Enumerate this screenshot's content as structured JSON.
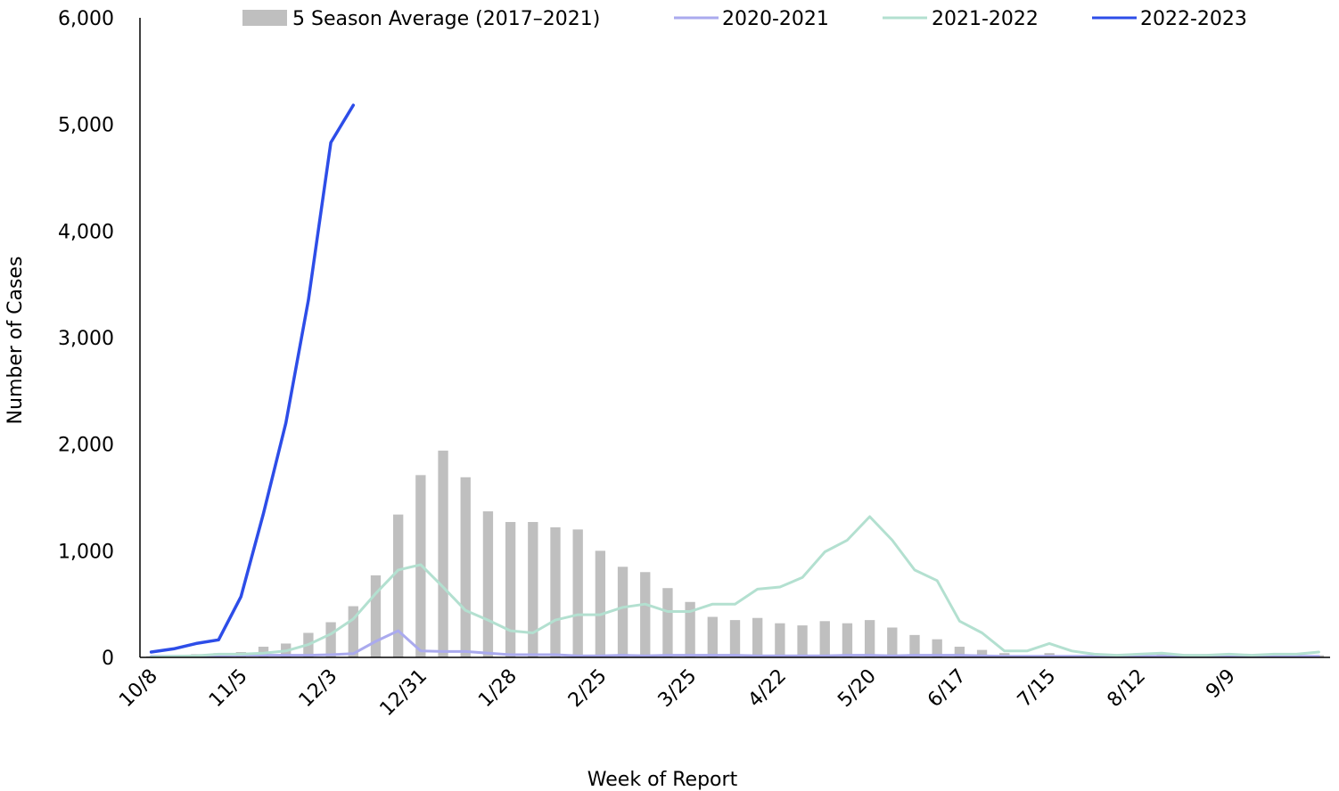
{
  "chart_data": {
    "type": "bar",
    "title": "",
    "xlabel": "Week of Report",
    "ylabel": "Number of Cases",
    "ylim": [
      0,
      6000
    ],
    "yticks": [
      0,
      1000,
      2000,
      3000,
      4000,
      5000,
      6000
    ],
    "ytick_labels": [
      "0",
      "1,000",
      "2,000",
      "3,000",
      "4,000",
      "5,000",
      "6,000"
    ],
    "xtick_labels": [
      "10/8",
      "11/5",
      "12/3",
      "12/31",
      "1/28",
      "2/25",
      "3/25",
      "4/22",
      "5/20",
      "6/17",
      "7/15",
      "8/12",
      "9/9"
    ],
    "grid": false,
    "legend_position": "top",
    "weeks": 53,
    "series": [
      {
        "name": "5 Season Average (2017–2021)",
        "kind": "bar",
        "color": "#bfbfbf",
        "values": [
          10,
          15,
          30,
          40,
          50,
          100,
          130,
          230,
          330,
          480,
          770,
          1340,
          1710,
          1940,
          1690,
          1370,
          1270,
          1270,
          1220,
          1200,
          1000,
          850,
          800,
          650,
          520,
          380,
          350,
          370,
          320,
          300,
          340,
          320,
          350,
          280,
          210,
          170,
          100,
          70,
          40,
          20,
          40,
          20,
          20,
          30,
          30,
          40,
          30,
          30,
          30,
          20,
          30,
          40,
          20
        ]
      },
      {
        "name": "2020-2021",
        "kind": "line",
        "color": "#aaaaee",
        "values": [
          10,
          10,
          10,
          15,
          20,
          20,
          20,
          20,
          25,
          35,
          150,
          250,
          60,
          55,
          55,
          40,
          25,
          25,
          25,
          15,
          15,
          20,
          15,
          20,
          20,
          20,
          20,
          15,
          15,
          15,
          15,
          20,
          20,
          15,
          20,
          20,
          20,
          15,
          10,
          10,
          10,
          10,
          10,
          10,
          10,
          10,
          10,
          10,
          10,
          10,
          10,
          10,
          10
        ]
      },
      {
        "name": "2021-2022",
        "kind": "line",
        "color": "#b3e0d0",
        "values": [
          5,
          10,
          15,
          30,
          30,
          40,
          60,
          120,
          220,
          360,
          600,
          820,
          870,
          660,
          440,
          350,
          250,
          230,
          350,
          400,
          400,
          470,
          500,
          430,
          430,
          500,
          500,
          640,
          660,
          750,
          990,
          1100,
          1320,
          1100,
          820,
          720,
          340,
          230,
          60,
          60,
          130,
          60,
          30,
          20,
          30,
          40,
          20,
          20,
          30,
          20,
          30,
          30,
          50
        ]
      },
      {
        "name": "2022-2023",
        "kind": "line",
        "color": "#2d4de8",
        "values": [
          50,
          80,
          130,
          165,
          570,
          1350,
          2200,
          3350,
          4830,
          5180
        ]
      }
    ]
  }
}
